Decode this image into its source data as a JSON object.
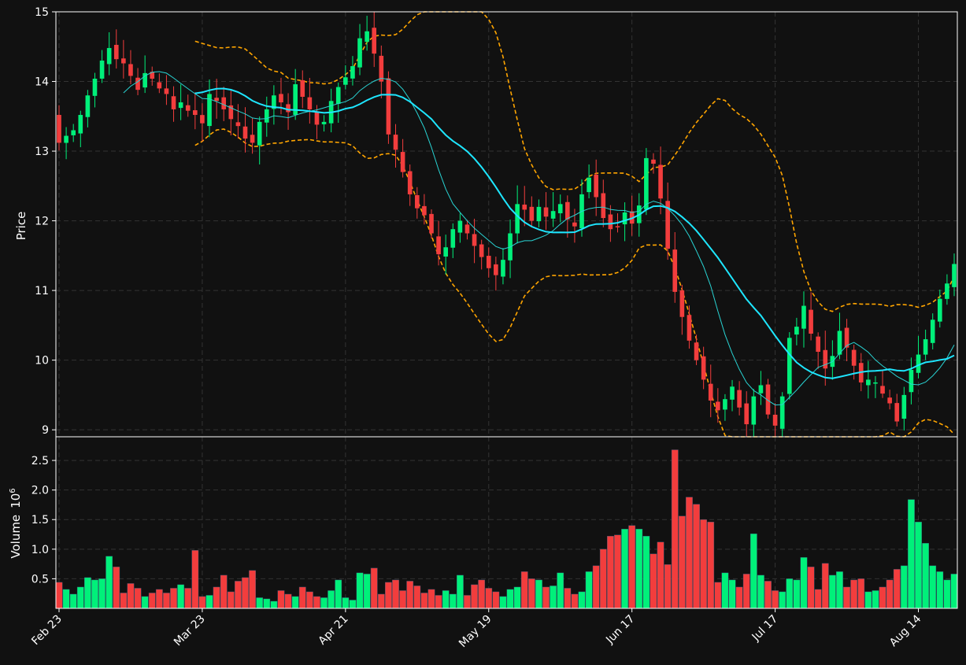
{
  "chart_data": {
    "type": "candlestick",
    "price_panel": {
      "ylabel": "Price",
      "ylim": [
        8.9,
        15.0
      ],
      "yticks": [
        9,
        10,
        11,
        12,
        13,
        14,
        15
      ],
      "grid": true
    },
    "volume_panel": {
      "ylabel": "Volume",
      "exponent_label": "10",
      "exponent_sup": "6",
      "ylim": [
        0,
        2.9
      ],
      "yticks": [
        0.5,
        1.0,
        1.5,
        2.0,
        2.5
      ],
      "ytick_labels": [
        "0.5",
        "1.0",
        "1.5",
        "2.0",
        "2.5"
      ],
      "grid": true
    },
    "x_tick_labels": [
      {
        "index": 0,
        "label": "Feb 23"
      },
      {
        "index": 20,
        "label": "Mar 23"
      },
      {
        "index": 40,
        "label": "Apr 21"
      },
      {
        "index": 60,
        "label": "May 19"
      },
      {
        "index": 80,
        "label": "Jun 17"
      },
      {
        "index": 100,
        "label": "Jul 17"
      },
      {
        "index": 120,
        "label": "Aug 14"
      }
    ],
    "num_bars": 126,
    "colors": {
      "background": "#111111",
      "up": "#00f07a",
      "down": "#f23d3d",
      "ma_fast": "#29d3d3",
      "ma_slow": "#1ee6ff",
      "bands": "#ffa500",
      "grid": "#333333",
      "text": "#ffffff"
    },
    "close": [
      13.12,
      13.22,
      13.3,
      13.52,
      13.8,
      14.04,
      14.3,
      14.48,
      14.32,
      14.26,
      14.08,
      13.88,
      14.12,
      14.04,
      13.9,
      13.82,
      13.6,
      13.7,
      13.58,
      13.52,
      13.4,
      13.82,
      13.72,
      13.6,
      13.46,
      13.36,
      13.18,
      13.12,
      13.42,
      13.6,
      13.8,
      13.7,
      13.56,
      13.96,
      13.78,
      13.6,
      13.38,
      13.42,
      13.72,
      13.92,
      14.06,
      14.22,
      14.62,
      14.72,
      14.4,
      14.0,
      13.24,
      13.02,
      12.7,
      12.38,
      12.18,
      12.08,
      11.82,
      11.52,
      11.62,
      11.88,
      12.0,
      11.82,
      11.64,
      11.48,
      11.32,
      11.22,
      11.44,
      11.82,
      12.24,
      12.16,
      12.0,
      12.2,
      12.06,
      12.14,
      12.24,
      12.02,
      11.92,
      12.38,
      12.62,
      12.34,
      12.04,
      11.88,
      11.92,
      12.12,
      11.96,
      12.22,
      12.9,
      12.82,
      12.32,
      11.6,
      10.98,
      10.62,
      10.28,
      10.0,
      9.72,
      9.42,
      9.28,
      9.44,
      9.62,
      9.32,
      9.08,
      9.48,
      9.64,
      9.22,
      9.06,
      9.48,
      10.32,
      10.48,
      10.78,
      10.38,
      10.12,
      9.88,
      10.06,
      10.42,
      10.18,
      9.92,
      9.68,
      9.72,
      9.68,
      9.52,
      9.38,
      9.12,
      9.5,
      9.86,
      10.08,
      10.3,
      10.58,
      10.88,
      11.1,
      11.38
    ]
  }
}
